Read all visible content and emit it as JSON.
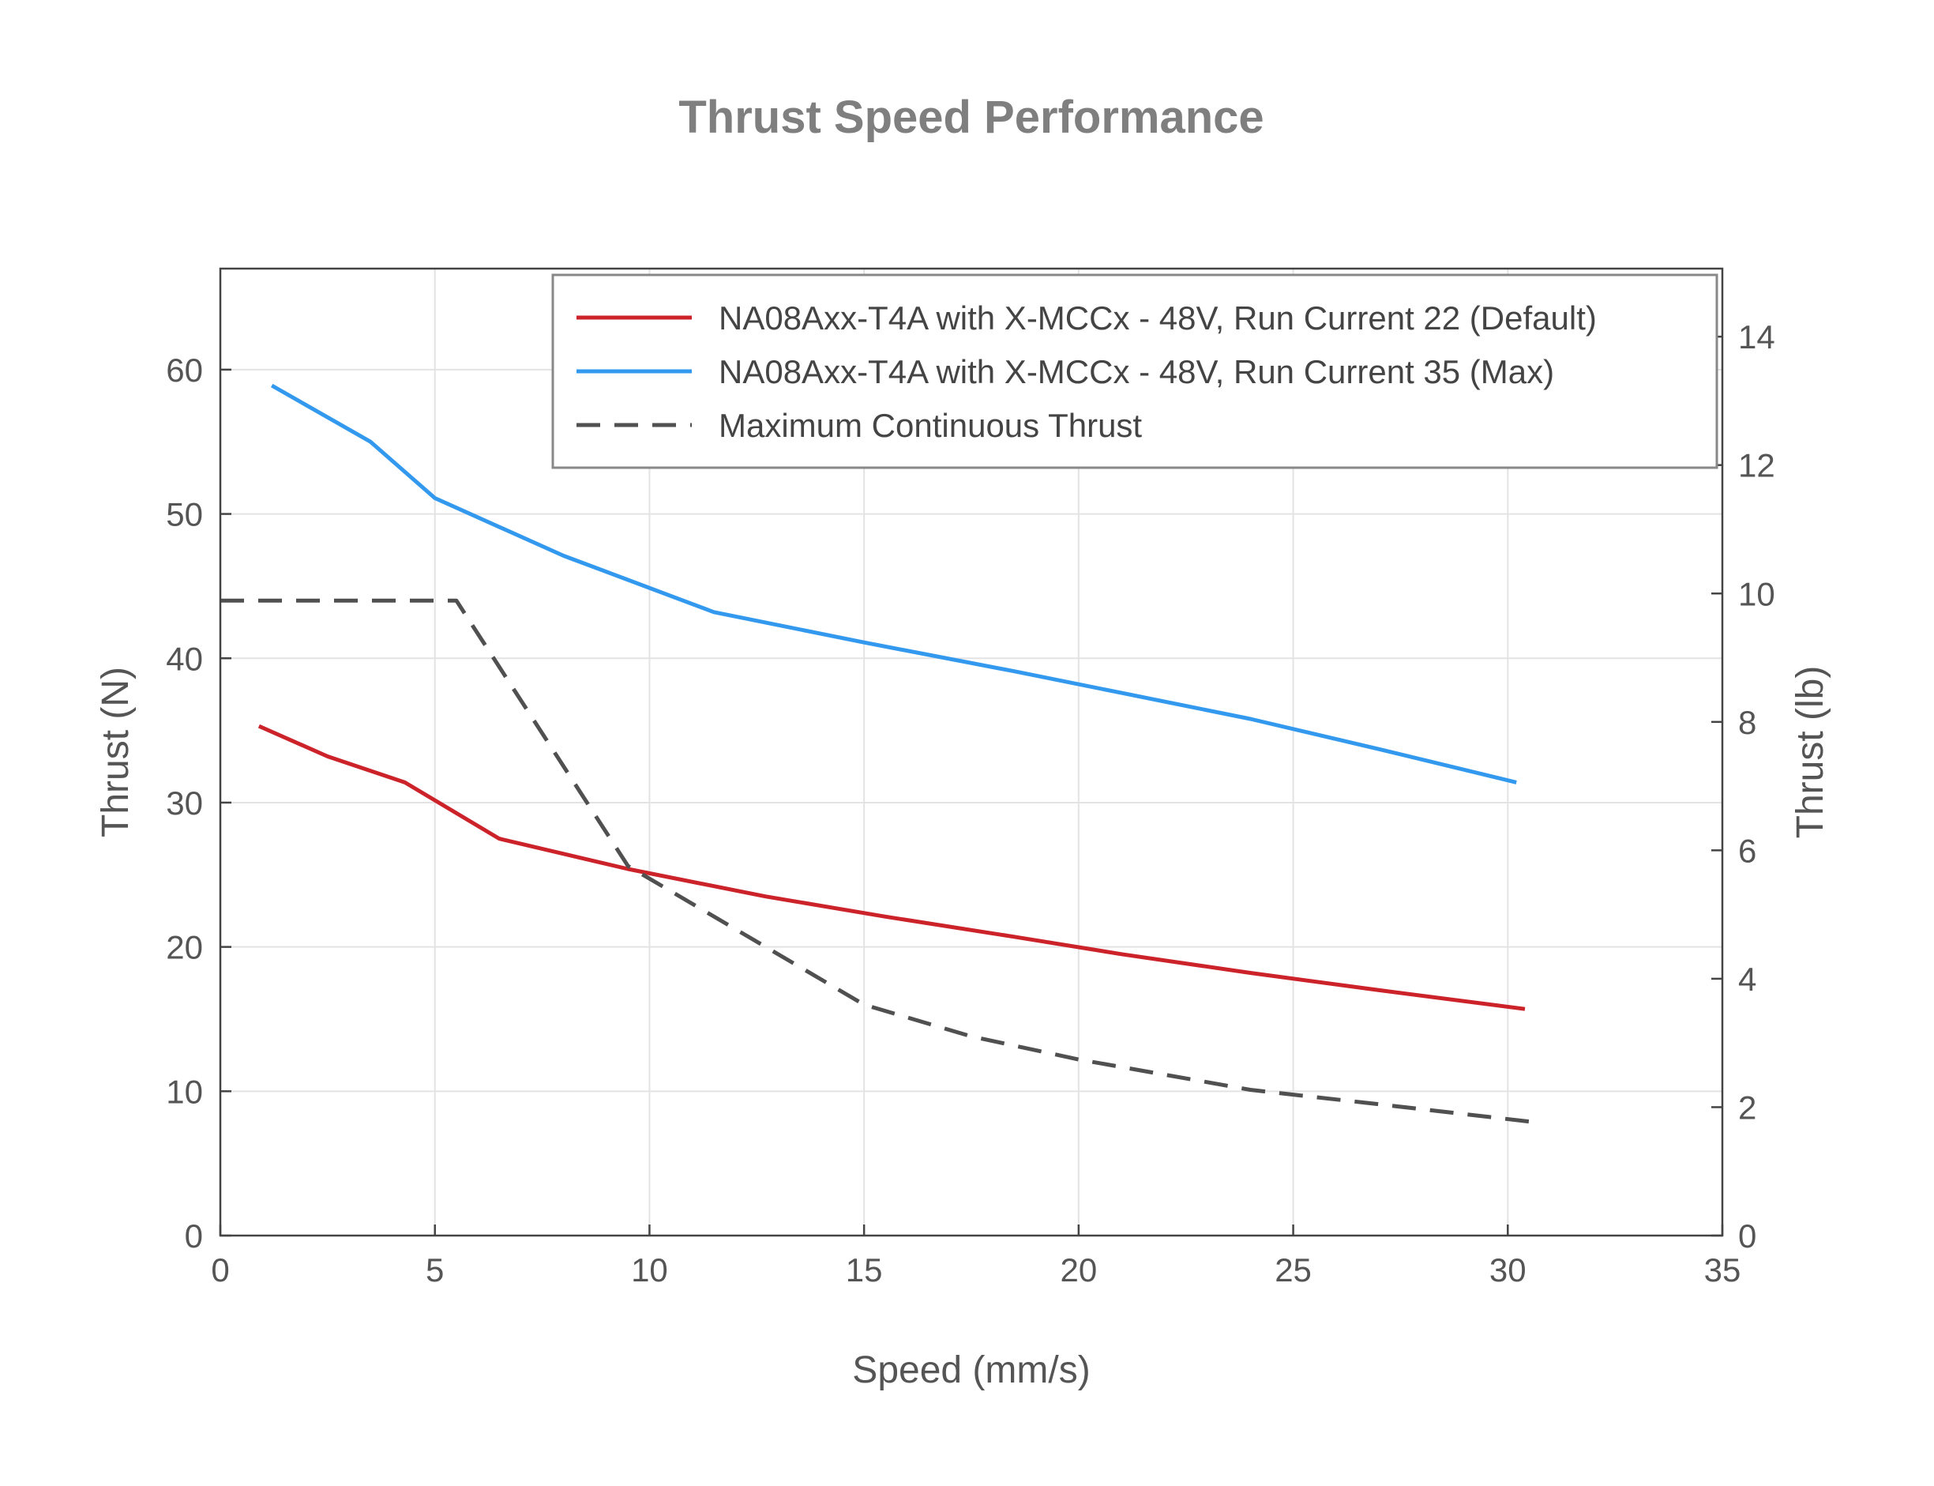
{
  "chart_data": {
    "type": "line",
    "title": "Thrust Speed Performance",
    "xlabel": "Speed (mm/s)",
    "ylabel": "Thrust (N)",
    "ylabel_right": "Thrust (lb)",
    "xlim": [
      0,
      35
    ],
    "ylim": [
      0,
      67
    ],
    "ylim_right": [
      0,
      15.06
    ],
    "x_ticks": [
      0,
      5,
      10,
      15,
      20,
      25,
      30,
      35
    ],
    "y_ticks": [
      0,
      10,
      20,
      30,
      40,
      50,
      60
    ],
    "y_ticks_right": [
      0,
      2,
      4,
      6,
      8,
      10,
      12,
      14
    ],
    "grid": true,
    "legend_position": "top-right",
    "series": [
      {
        "name": "NA08Axx-T4A with X-MCCx - 48V, Run Current 22 (Default)",
        "color": "#cc2229",
        "dash": "solid",
        "x": [
          0.9,
          2.5,
          4.3,
          6.5,
          9.5,
          12.7,
          15.5,
          18.5,
          21.0,
          24.0,
          27.0,
          30.4
        ],
        "y": [
          35.3,
          33.2,
          31.4,
          27.5,
          25.4,
          23.5,
          22.1,
          20.7,
          19.5,
          18.2,
          17.0,
          15.7
        ]
      },
      {
        "name": "NA08Axx-T4A with X-MCCx - 48V, Run Current 35 (Max)",
        "color": "#3399ee",
        "dash": "solid",
        "x": [
          1.2,
          3.5,
          5.0,
          8.0,
          11.5,
          15.0,
          18.5,
          21.0,
          24.0,
          27.0,
          30.2
        ],
        "y": [
          58.9,
          55.0,
          51.1,
          47.1,
          43.2,
          41.1,
          39.1,
          37.6,
          35.8,
          33.7,
          31.4
        ]
      },
      {
        "name": "Maximum Continuous Thrust",
        "color": "#505050",
        "dash": "dashed",
        "x": [
          0,
          5.5,
          9.5,
          15.0,
          17.5,
          20.0,
          24.0,
          27.0,
          30.5
        ],
        "y": [
          44.0,
          44.0,
          25.6,
          16.0,
          13.8,
          12.2,
          10.1,
          9.1,
          7.9
        ]
      }
    ]
  }
}
